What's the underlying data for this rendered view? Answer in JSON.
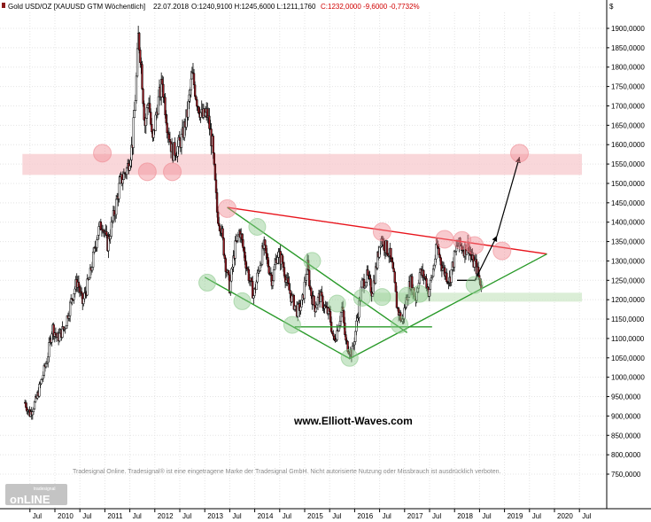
{
  "header": {
    "instrument": "Gold USD/OZ [XAUUSD GTM  Wöchentlich]",
    "date": "22.07.2018",
    "ohlc": "O:1240,9100 H:1245,6000 L:1211,1760",
    "close_change": "C:1232,0000 -9,6000 -0,7732%"
  },
  "axis": {
    "currency": "$",
    "y_ticks": [
      "1900,0000",
      "1850,0000",
      "1800,0000",
      "1750,0000",
      "1700,0000",
      "1650,0000",
      "1600,0000",
      "1550,0000",
      "1500,0000",
      "1450,0000",
      "1400,0000",
      "1350,0000",
      "1300,0000",
      "1250,0000",
      "1200,0000",
      "1150,0000",
      "1100,0000",
      "1050,0000",
      "1000,0000",
      "950,0000",
      "900,0000",
      "850,0000",
      "800,0000",
      "750,0000"
    ],
    "x_ticks": [
      "Jul",
      "2010",
      "Jul",
      "2011",
      "Jul",
      "2012",
      "Jul",
      "2013",
      "Jul",
      "2014",
      "Jul",
      "2015",
      "Jul",
      "2016",
      "Jul",
      "2017",
      "Jul",
      "2018",
      "Jul",
      "2019",
      "Jul",
      "2020",
      "Jul"
    ]
  },
  "watermark": "www.Elliott-Waves.com",
  "copyright": "Tradesignal Online. Tradesignal® ist eine eingetragene Marke der Tradesignal GmbH. Nicht autorisierte Nutzung oder Missbrauch ist ausdrücklich verboten.",
  "logo": {
    "small": "tradesignal",
    "big": "onLINE"
  },
  "colors": {
    "resistance_zone": "#f7c9cd",
    "support_zone": "#cfe8c9",
    "red_line": "#e8141c",
    "green_line": "#2a9a2a",
    "candle_bull": "#ffffff",
    "candle_bear": "#9b1c24"
  },
  "chart_data": {
    "type": "candlestick",
    "title": "Gold USD/OZ [XAUUSD GTM  Wöchentlich]",
    "ylim": [
      730,
      1945
    ],
    "xlim": [
      2009.35,
      2020.85
    ],
    "y_scale": "linear",
    "grid": true,
    "price_path": [
      [
        2009.4,
        935
      ],
      [
        2009.5,
        905
      ],
      [
        2009.62,
        940
      ],
      [
        2009.75,
        1000
      ],
      [
        2009.85,
        1050
      ],
      [
        2009.95,
        1130
      ],
      [
        2010.05,
        1100
      ],
      [
        2010.2,
        1130
      ],
      [
        2010.35,
        1210
      ],
      [
        2010.45,
        1250
      ],
      [
        2010.55,
        1190
      ],
      [
        2010.7,
        1260
      ],
      [
        2010.85,
        1370
      ],
      [
        2010.95,
        1400
      ],
      [
        2011.05,
        1340
      ],
      [
        2011.2,
        1430
      ],
      [
        2011.3,
        1500
      ],
      [
        2011.45,
        1540
      ],
      [
        2011.55,
        1600
      ],
      [
        2011.62,
        1740
      ],
      [
        2011.67,
        1880
      ],
      [
        2011.72,
        1820
      ],
      [
        2011.8,
        1650
      ],
      [
        2011.88,
        1720
      ],
      [
        2011.95,
        1600
      ],
      [
        2012.05,
        1700
      ],
      [
        2012.15,
        1760
      ],
      [
        2012.25,
        1650
      ],
      [
        2012.35,
        1580
      ],
      [
        2012.45,
        1590
      ],
      [
        2012.55,
        1620
      ],
      [
        2012.65,
        1680
      ],
      [
        2012.75,
        1780
      ],
      [
        2012.85,
        1710
      ],
      [
        2012.95,
        1670
      ],
      [
        2013.05,
        1680
      ],
      [
        2013.15,
        1600
      ],
      [
        2013.25,
        1420
      ],
      [
        2013.32,
        1390
      ],
      [
        2013.42,
        1290
      ],
      [
        2013.5,
        1230
      ],
      [
        2013.6,
        1330
      ],
      [
        2013.7,
        1380
      ],
      [
        2013.8,
        1310
      ],
      [
        2013.9,
        1250
      ],
      [
        2013.98,
        1210
      ],
      [
        2014.1,
        1290
      ],
      [
        2014.18,
        1340
      ],
      [
        2014.25,
        1300
      ],
      [
        2014.35,
        1250
      ],
      [
        2014.45,
        1320
      ],
      [
        2014.55,
        1300
      ],
      [
        2014.65,
        1240
      ],
      [
        2014.75,
        1200
      ],
      [
        2014.85,
        1170
      ],
      [
        2014.95,
        1190
      ],
      [
        2015.05,
        1290
      ],
      [
        2015.12,
        1220
      ],
      [
        2015.2,
        1180
      ],
      [
        2015.3,
        1210
      ],
      [
        2015.4,
        1180
      ],
      [
        2015.5,
        1160
      ],
      [
        2015.58,
        1090
      ],
      [
        2015.65,
        1120
      ],
      [
        2015.75,
        1180
      ],
      [
        2015.82,
        1090
      ],
      [
        2015.9,
        1070
      ],
      [
        2015.95,
        1060
      ],
      [
        2016.05,
        1150
      ],
      [
        2016.15,
        1240
      ],
      [
        2016.25,
        1260
      ],
      [
        2016.35,
        1220
      ],
      [
        2016.45,
        1300
      ],
      [
        2016.52,
        1360
      ],
      [
        2016.6,
        1340
      ],
      [
        2016.7,
        1320
      ],
      [
        2016.78,
        1260
      ],
      [
        2016.85,
        1180
      ],
      [
        2016.95,
        1140
      ],
      [
        2017.05,
        1210
      ],
      [
        2017.12,
        1250
      ],
      [
        2017.22,
        1200
      ],
      [
        2017.3,
        1270
      ],
      [
        2017.4,
        1260
      ],
      [
        2017.48,
        1220
      ],
      [
        2017.55,
        1260
      ],
      [
        2017.65,
        1340
      ],
      [
        2017.72,
        1300
      ],
      [
        2017.8,
        1270
      ],
      [
        2017.9,
        1250
      ],
      [
        2017.98,
        1300
      ],
      [
        2018.05,
        1340
      ],
      [
        2018.12,
        1340
      ],
      [
        2018.2,
        1330
      ],
      [
        2018.28,
        1340
      ],
      [
        2018.35,
        1300
      ],
      [
        2018.42,
        1290
      ],
      [
        2018.48,
        1260
      ],
      [
        2018.55,
        1232
      ]
    ],
    "zones": [
      {
        "name": "resistance",
        "x": [
          2009.35,
          2020.55
        ],
        "y": [
          1522,
          1576
        ]
      },
      {
        "name": "support",
        "x": [
          2016.3,
          2020.55
        ],
        "y": [
          1195,
          1218
        ]
      }
    ],
    "lines": [
      {
        "name": "red-resistance-line",
        "points": [
          [
            2013.45,
            1438
          ],
          [
            2019.85,
            1318
          ]
        ]
      },
      {
        "name": "green-upper-channel",
        "points": [
          [
            2013.45,
            1438
          ],
          [
            2017.05,
            1115
          ]
        ]
      },
      {
        "name": "green-lower-channel",
        "points": [
          [
            2013.0,
            1258
          ],
          [
            2015.9,
            1048
          ]
        ]
      },
      {
        "name": "green-rising-support",
        "points": [
          [
            2015.9,
            1048
          ],
          [
            2019.85,
            1318
          ]
        ]
      },
      {
        "name": "green-horizontal",
        "points": [
          [
            2014.8,
            1130
          ],
          [
            2017.55,
            1130
          ]
        ]
      },
      {
        "name": "black-baseline",
        "points": [
          [
            2018.05,
            1250
          ],
          [
            2018.4,
            1250
          ]
        ]
      }
    ],
    "arrows": [
      {
        "name": "forecast-arrow-1",
        "from": [
          2018.4,
          1248
        ],
        "to": [
          2018.85,
          1365
        ]
      },
      {
        "name": "forecast-arrow-2",
        "from": [
          2018.85,
          1365
        ],
        "to": [
          2019.3,
          1568
        ]
      }
    ],
    "markers_red": [
      [
        2010.95,
        1578
      ],
      [
        2011.85,
        1530
      ],
      [
        2012.35,
        1530
      ],
      [
        2013.45,
        1435
      ],
      [
        2016.55,
        1375
      ],
      [
        2017.8,
        1356
      ],
      [
        2018.15,
        1353
      ],
      [
        2018.4,
        1340
      ],
      [
        2018.95,
        1326
      ],
      [
        2019.3,
        1578
      ]
    ],
    "markers_green": [
      [
        2013.05,
        1244
      ],
      [
        2013.75,
        1196
      ],
      [
        2014.05,
        1388
      ],
      [
        2014.75,
        1135
      ],
      [
        2015.15,
        1300
      ],
      [
        2015.65,
        1190
      ],
      [
        2015.9,
        1050
      ],
      [
        2016.15,
        1205
      ],
      [
        2016.55,
        1207
      ],
      [
        2016.9,
        1135
      ],
      [
        2017.05,
        1210
      ],
      [
        2017.3,
        1215
      ],
      [
        2018.4,
        1238
      ]
    ]
  }
}
